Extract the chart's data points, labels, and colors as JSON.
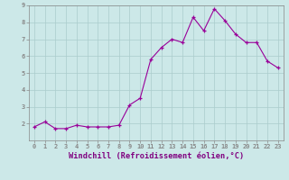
{
  "xlabel": "Windchill (Refroidissement éolien,°C)",
  "x": [
    0,
    1,
    2,
    3,
    4,
    5,
    6,
    7,
    8,
    9,
    10,
    11,
    12,
    13,
    14,
    15,
    16,
    17,
    18,
    19,
    20,
    21,
    22,
    23
  ],
  "y": [
    1.8,
    2.1,
    1.7,
    1.7,
    1.9,
    1.8,
    1.8,
    1.8,
    1.9,
    3.1,
    3.5,
    5.8,
    6.5,
    7.0,
    6.8,
    8.3,
    7.5,
    8.8,
    8.1,
    7.3,
    6.8,
    6.8,
    5.7,
    5.3
  ],
  "line_color": "#990099",
  "marker": "+",
  "marker_color": "#990099",
  "bg_color": "#cce8e8",
  "grid_color": "#aacccc",
  "text_color": "#800080",
  "ylim": [
    1.0,
    9.0
  ],
  "yticks": [
    2,
    3,
    4,
    5,
    6,
    7,
    8,
    9
  ],
  "xlim": [
    -0.5,
    23.5
  ],
  "xticks": [
    0,
    1,
    2,
    3,
    4,
    5,
    6,
    7,
    8,
    9,
    10,
    11,
    12,
    13,
    14,
    15,
    16,
    17,
    18,
    19,
    20,
    21,
    22,
    23
  ],
  "tick_label_fontsize": 5.0,
  "xlabel_fontsize": 6.2,
  "spine_color": "#888888"
}
